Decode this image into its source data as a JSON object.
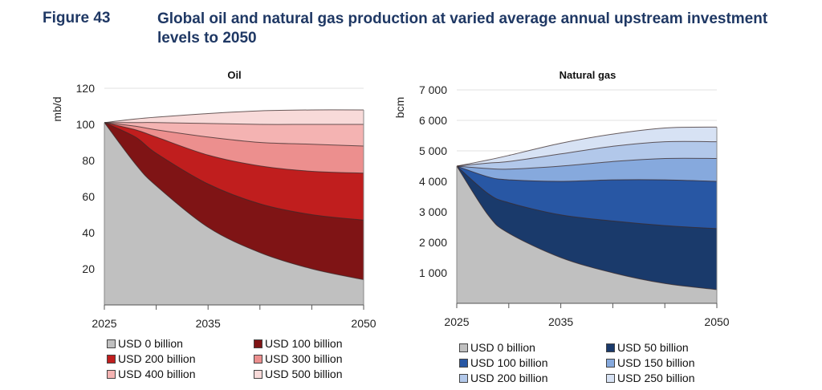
{
  "figure": {
    "number": "Figure 43",
    "title": "Global oil and natural gas production at varied average annual upstream investment levels to 2050"
  },
  "chart_data": [
    {
      "type": "area",
      "title": "Oil",
      "xlabel": "",
      "ylabel": "mb/d",
      "x": [
        2025,
        2028,
        2030,
        2035,
        2040,
        2045,
        2050
      ],
      "xticks": [
        2025,
        2030,
        2035,
        2040,
        2045,
        2050
      ],
      "xtick_labels": [
        "2025",
        "",
        "2035",
        "",
        "",
        "2050"
      ],
      "ylim": [
        0,
        120
      ],
      "yticks": [
        20,
        40,
        60,
        80,
        100,
        120
      ],
      "ytick_labels": [
        "20",
        "40",
        "60",
        "80",
        "100",
        "120"
      ],
      "grid": "horizontal at top only",
      "legend_position": "bottom",
      "series": [
        {
          "name": "USD 0 billion",
          "color": "#c0c0c0",
          "values": [
            101,
            78,
            66,
            43,
            29,
            20,
            14
          ]
        },
        {
          "name": "USD 100 billion",
          "color": "#7f1415",
          "values": [
            101,
            93,
            84,
            67,
            56,
            50,
            47
          ]
        },
        {
          "name": "USD 200 billion",
          "color": "#c01e1e",
          "values": [
            101,
            97,
            93,
            83,
            77,
            74,
            73
          ]
        },
        {
          "name": "USD 300 billion",
          "color": "#ec8f8e",
          "values": [
            101,
            99,
            97,
            93,
            90,
            89,
            88
          ]
        },
        {
          "name": "USD 400 billion",
          "color": "#f4b3b2",
          "values": [
            101,
            101,
            101,
            100.5,
            100,
            100,
            100
          ]
        },
        {
          "name": "USD 500 billion",
          "color": "#f8dad9",
          "values": [
            101,
            103,
            104,
            106,
            107.5,
            108,
            108
          ]
        }
      ]
    },
    {
      "type": "area",
      "title": "Natural gas",
      "xlabel": "",
      "ylabel": "bcm",
      "x": [
        2025,
        2028,
        2030,
        2035,
        2040,
        2045,
        2050
      ],
      "xticks": [
        2025,
        2030,
        2035,
        2040,
        2045,
        2050
      ],
      "xtick_labels": [
        "2025",
        "",
        "2035",
        "",
        "",
        "2050"
      ],
      "ylim": [
        0,
        7000
      ],
      "yticks": [
        1000,
        2000,
        3000,
        4000,
        5000,
        6000,
        7000
      ],
      "ytick_labels": [
        "1 000",
        "2 000",
        "3 000",
        "4 000",
        "5 000",
        "6 000",
        "7 000"
      ],
      "grid": "horizontal",
      "legend_position": "bottom",
      "series": [
        {
          "name": "USD 0 billion",
          "color": "#c0c0c0",
          "values": [
            4500,
            2900,
            2300,
            1500,
            1000,
            650,
            450
          ]
        },
        {
          "name": "USD 50 billion",
          "color": "#1a3a6b",
          "values": [
            4500,
            3600,
            3300,
            2900,
            2700,
            2550,
            2450
          ]
        },
        {
          "name": "USD 100 billion",
          "color": "#2857a4",
          "values": [
            4500,
            4150,
            4050,
            4000,
            4050,
            4050,
            4000
          ]
        },
        {
          "name": "USD 150 billion",
          "color": "#86a9dd",
          "values": [
            4500,
            4420,
            4400,
            4500,
            4650,
            4750,
            4750
          ]
        },
        {
          "name": "USD 200 billion",
          "color": "#b2c8ea",
          "values": [
            4500,
            4600,
            4650,
            4900,
            5150,
            5300,
            5300
          ]
        },
        {
          "name": "USD 250 billion",
          "color": "#d7e2f4",
          "values": [
            4500,
            4700,
            4850,
            5250,
            5550,
            5750,
            5780
          ]
        }
      ]
    }
  ]
}
